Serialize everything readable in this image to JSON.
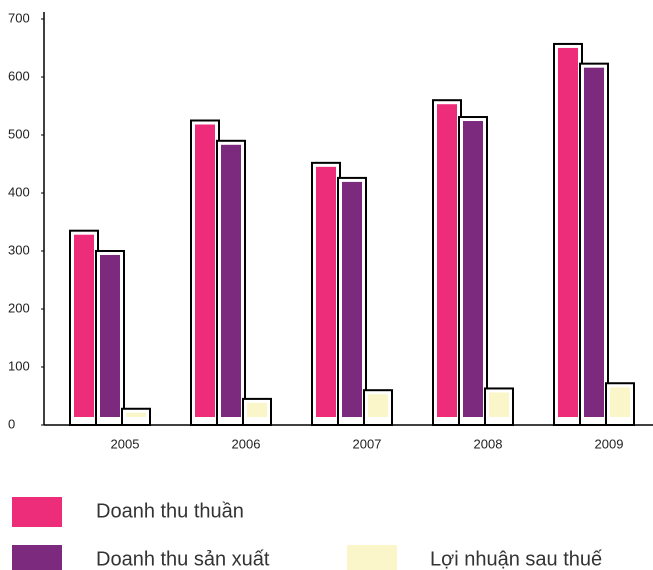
{
  "chart_data": {
    "type": "bar",
    "categories": [
      "2005",
      "2006",
      "2007",
      "2008",
      "2009"
    ],
    "series": [
      {
        "name": "Doanh thu thuần",
        "color": "#ee2d7a",
        "values": [
          335,
          525,
          452,
          560,
          657
        ]
      },
      {
        "name": "Doanh thu sản xuất",
        "color": "#7b2a7e",
        "values": [
          300,
          490,
          426,
          531,
          623
        ]
      },
      {
        "name": "Lợi nhuận sau thuế",
        "color": "#fbf6c9",
        "values": [
          28,
          45,
          60,
          63,
          72
        ]
      }
    ],
    "ylim": [
      0,
      700
    ],
    "yticks": [
      0,
      100,
      200,
      300,
      400,
      500,
      600,
      700
    ]
  }
}
